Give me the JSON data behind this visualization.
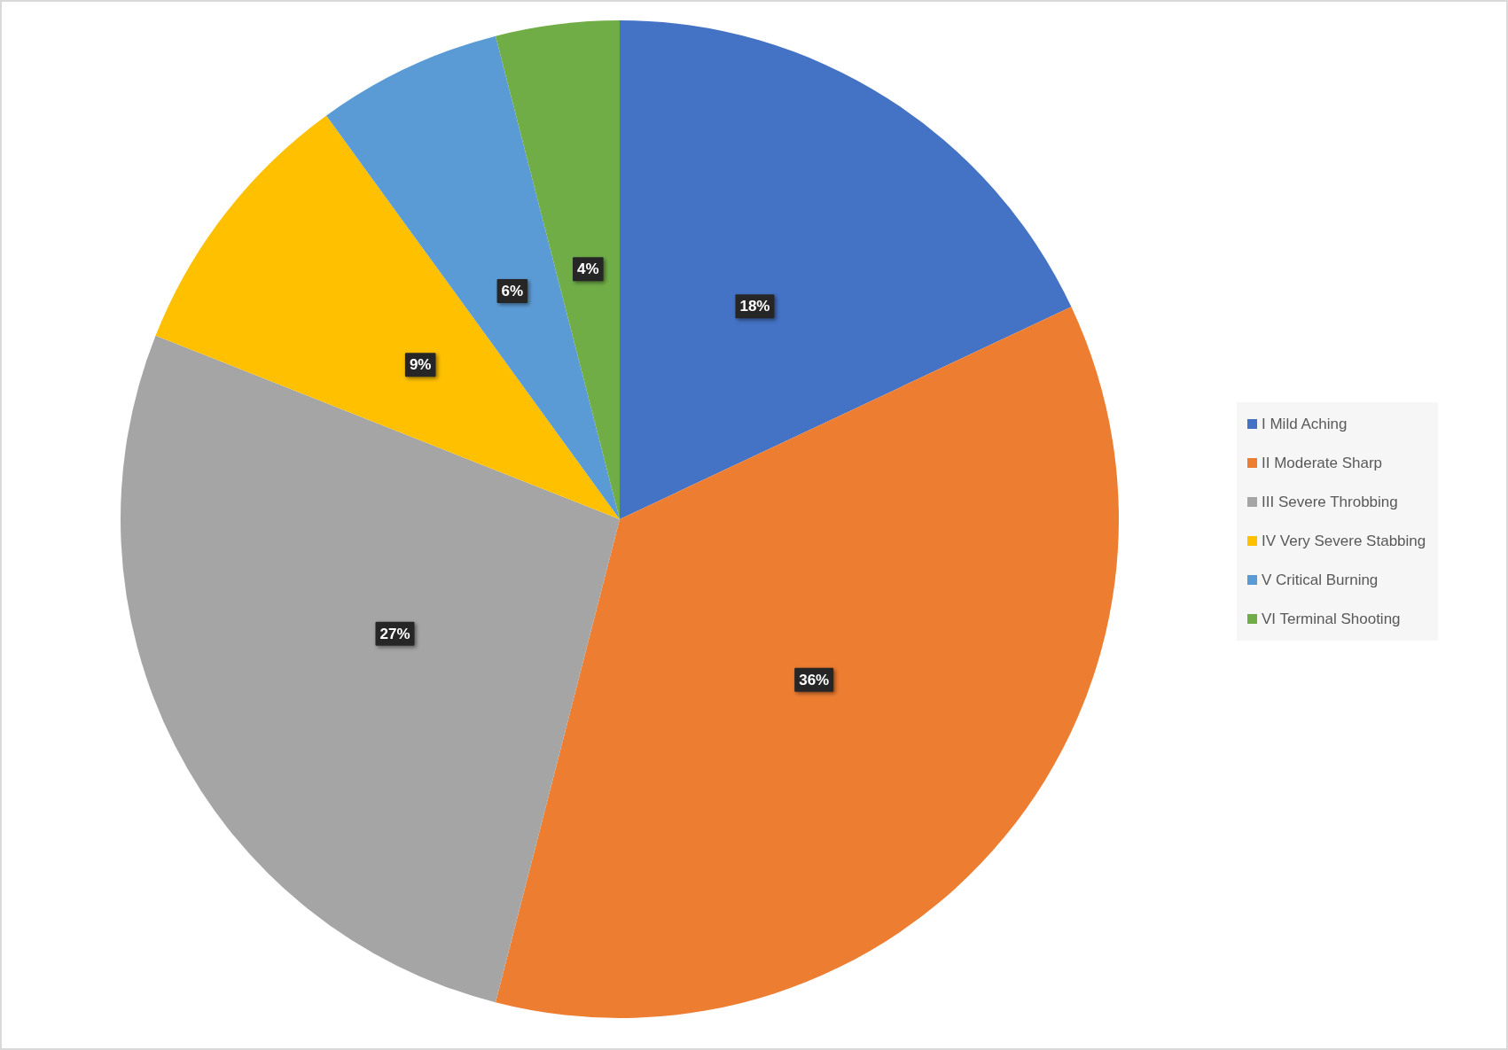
{
  "chart_data": {
    "type": "pie",
    "categories": [
      "I Mild Aching",
      "II Moderate Sharp",
      "III Severe Throbbing",
      "IV Very Severe Stabbing",
      "V Critical Burning",
      "VI Terminal Shooting"
    ],
    "values": [
      18,
      36,
      27,
      9,
      6,
      4
    ],
    "colors": [
      "#4472c4",
      "#ed7d31",
      "#a5a5a5",
      "#ffc000",
      "#5b9bd5",
      "#70ad47"
    ],
    "value_labels": [
      "18%",
      "36%",
      "27%",
      "9%",
      "6%",
      "4%"
    ],
    "legend": "right"
  }
}
